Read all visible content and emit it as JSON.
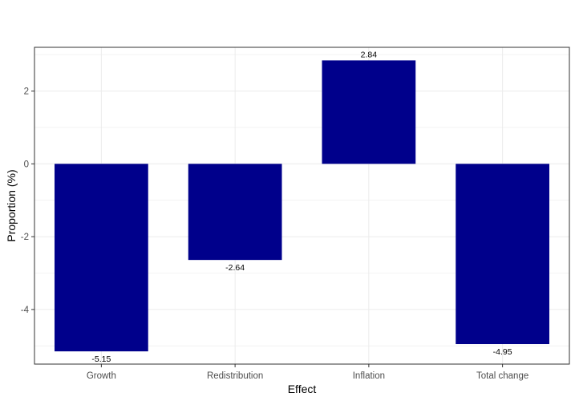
{
  "chart_data": {
    "type": "bar",
    "title": "",
    "xlabel": "Effect",
    "ylabel": "Proportion (%)",
    "categories": [
      "Growth",
      "Redistribution",
      "Inflation",
      "Total change"
    ],
    "values": [
      -5.15,
      -2.64,
      2.84,
      -4.95
    ],
    "data_labels": [
      "-5.15",
      "-2.64",
      "2.84",
      "-4.95"
    ],
    "ylim": [
      -5.5,
      3.2
    ],
    "yticks": [
      -4,
      -2,
      0,
      2
    ],
    "ytick_labels": [
      "-4",
      "-2",
      "0",
      "2"
    ],
    "grid": true,
    "bar_color": "#00008B",
    "legend": "none"
  }
}
